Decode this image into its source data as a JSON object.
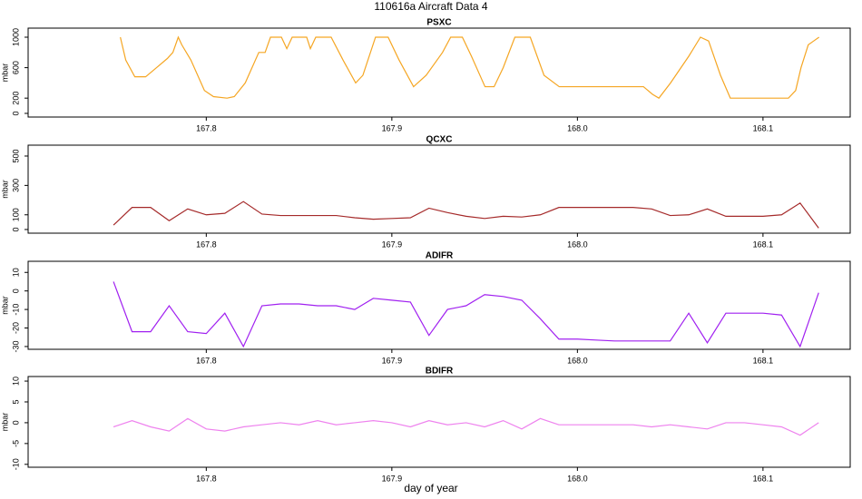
{
  "title": "110616a   Aircraft Data 4",
  "xlabel": "day of year",
  "chart_data": [
    {
      "type": "line",
      "title": "PSXC",
      "ylabel": "mbar",
      "color": "#f5a623",
      "x": [
        167.7537,
        167.7566,
        167.7615,
        167.7673,
        167.7732,
        167.779,
        167.782,
        167.7849,
        167.7868,
        167.7917,
        167.799,
        167.8039,
        167.8112,
        167.8151,
        167.821,
        167.8283,
        167.8317,
        167.8346,
        167.8405,
        167.8434,
        167.8463,
        167.8541,
        167.8561,
        167.859,
        167.8673,
        167.8737,
        167.8805,
        167.8844,
        167.8912,
        167.898,
        167.9039,
        167.9117,
        167.9185,
        167.9273,
        167.9317,
        167.938,
        167.9429,
        167.9502,
        167.9551,
        167.96,
        167.9663,
        167.9746,
        167.982,
        167.9902,
        168.0356,
        168.0405,
        168.0439,
        168.0502,
        168.06,
        168.0663,
        168.0707,
        168.0771,
        168.0824,
        168.1137,
        168.1176,
        168.1205,
        168.1244,
        168.1273,
        168.1302
      ],
      "values": [
        1000,
        700,
        480,
        480,
        600,
        720,
        800,
        1000,
        900,
        700,
        300,
        220,
        200,
        220,
        400,
        800,
        800,
        1000,
        1000,
        850,
        1000,
        1000,
        850,
        1000,
        1000,
        700,
        400,
        500,
        1000,
        1000,
        700,
        350,
        500,
        800,
        1000,
        1000,
        750,
        350,
        350,
        600,
        1000,
        1000,
        500,
        350,
        350,
        250,
        200,
        400,
        750,
        1000,
        950,
        500,
        200,
        200,
        300,
        600,
        900,
        950,
        1000
      ],
      "xlim": [
        167.704,
        168.147
      ],
      "ylim": [
        -48,
        1119
      ],
      "xticks": [
        167.8,
        167.9,
        {
          "value": 168,
          "label": "168.0"
        },
        168.1
      ],
      "yticks": [
        0,
        200,
        600,
        1000
      ]
    },
    {
      "type": "line",
      "title": "QCXC",
      "ylabel": "mbar",
      "color": "#a52a2a",
      "x": [
        167.75,
        167.76,
        167.77,
        167.78,
        167.79,
        167.8,
        167.81,
        167.82,
        167.83,
        167.84,
        167.85,
        167.86,
        167.87,
        167.88,
        167.89,
        167.9,
        167.91,
        167.92,
        167.93,
        167.94,
        167.95,
        167.96,
        167.97,
        167.98,
        167.99,
        168.0,
        168.01,
        168.02,
        168.03,
        168.04,
        168.05,
        168.06,
        168.07,
        168.08,
        168.09,
        168.1,
        168.11,
        168.12,
        168.13
      ],
      "values": [
        30,
        150,
        150,
        60,
        140,
        100,
        110,
        190,
        105,
        95,
        95,
        95,
        95,
        80,
        70,
        75,
        80,
        145,
        115,
        90,
        75,
        90,
        85,
        100,
        150,
        150,
        150,
        150,
        150,
        140,
        95,
        100,
        140,
        90,
        90,
        90,
        100,
        180,
        10
      ],
      "xlim": [
        167.704,
        168.147
      ],
      "ylim": [
        -25,
        574
      ],
      "xticks": [
        167.8,
        167.9,
        {
          "value": 168,
          "label": "168.0"
        },
        168.1
      ],
      "yticks": [
        0,
        100,
        300,
        500
      ]
    },
    {
      "type": "line",
      "title": "ADIFR",
      "ylabel": "mbar",
      "color": "#a020f0",
      "x": [
        167.75,
        167.76,
        167.77,
        167.78,
        167.79,
        167.8,
        167.81,
        167.82,
        167.83,
        167.84,
        167.85,
        167.86,
        167.87,
        167.88,
        167.89,
        167.9,
        167.91,
        167.92,
        167.93,
        167.94,
        167.95,
        167.96,
        167.97,
        167.98,
        167.99,
        168.0,
        168.01,
        168.02,
        168.03,
        168.04,
        168.05,
        168.06,
        168.07,
        168.08,
        168.09,
        168.1,
        168.11,
        168.12,
        168.13
      ],
      "values": [
        5,
        -22,
        -22,
        -8,
        -22,
        -23,
        -12,
        -30,
        -8,
        -7,
        -7,
        -8,
        -8,
        -10,
        -4,
        -5,
        -6,
        -24,
        -10,
        -8,
        -2,
        -3,
        -5,
        -15,
        -26,
        -26,
        -26.5,
        -27,
        -27,
        -27,
        -27,
        -12,
        -28,
        -12,
        -12,
        -12,
        -13,
        -30,
        -1
      ],
      "xlim": [
        167.704,
        168.147
      ],
      "ylim": [
        -31.5,
        16
      ],
      "xticks": [
        167.8,
        167.9,
        {
          "value": 168,
          "label": "168.0"
        },
        168.1
      ],
      "yticks": [
        -30,
        -20,
        -10,
        0,
        10
      ]
    },
    {
      "type": "line",
      "title": "BDIFR",
      "ylabel": "mbar",
      "color": "#ee82ee",
      "x": [
        167.75,
        167.76,
        167.77,
        167.78,
        167.79,
        167.8,
        167.81,
        167.82,
        167.83,
        167.84,
        167.85,
        167.86,
        167.87,
        167.88,
        167.89,
        167.9,
        167.91,
        167.92,
        167.93,
        167.94,
        167.95,
        167.96,
        167.97,
        167.98,
        167.99,
        168.0,
        168.01,
        168.02,
        168.03,
        168.04,
        168.05,
        168.06,
        168.07,
        168.08,
        168.09,
        168.1,
        168.11,
        168.12,
        168.13
      ],
      "values": [
        -1,
        0.5,
        -1,
        -2,
        1,
        -1.5,
        -2,
        -1,
        -0.5,
        0,
        -0.5,
        0.5,
        -0.5,
        0,
        0.5,
        0,
        -1,
        0.5,
        -0.5,
        0,
        -1,
        0.5,
        -1.5,
        1,
        -0.5,
        -0.5,
        -0.5,
        -0.5,
        -0.5,
        -1,
        -0.5,
        -1,
        -1.5,
        0,
        0,
        -0.5,
        -1,
        -3,
        0
      ],
      "xlim": [
        167.704,
        168.147
      ],
      "ylim": [
        -10.7,
        11.1
      ],
      "xticks": [
        167.8,
        167.9,
        {
          "value": 168,
          "label": "168.0"
        },
        168.1
      ],
      "yticks": [
        -10,
        -5,
        0,
        5,
        10
      ]
    }
  ]
}
